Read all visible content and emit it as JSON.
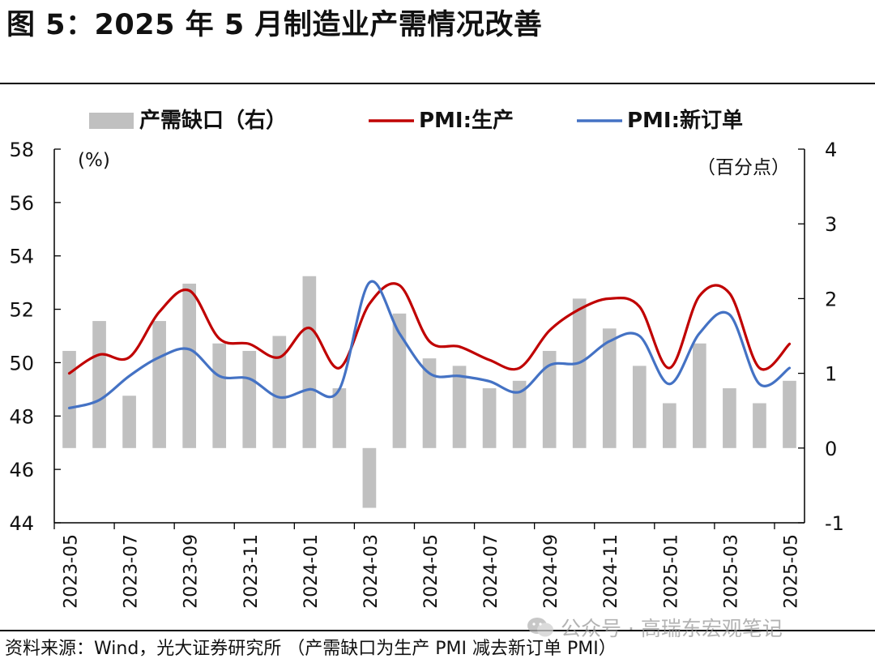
{
  "title": "图 5：2025 年 5 月制造业产需情况改善",
  "source": "资料来源：Wind，光大证券研究所 （产需缺口为生产 PMI 减去新订单 PMI）",
  "watermark": "公众号 · 高瑞东宏观笔记",
  "colors": {
    "bar": "#c0c0c0",
    "production": "#c00000",
    "new_orders": "#4472c4"
  },
  "chart_data": {
    "type": "bar+line",
    "legend_position": "top",
    "left_unit": "(%)",
    "right_unit": "（百分点）",
    "left_axis": {
      "min": 44,
      "max": 58,
      "ticks": [
        44,
        46,
        48,
        50,
        52,
        54,
        56,
        58
      ]
    },
    "right_axis": {
      "min": -1,
      "max": 4,
      "ticks": [
        -1,
        0,
        1,
        2,
        3,
        4
      ]
    },
    "x": [
      "2023-05",
      "2023-06",
      "2023-07",
      "2023-08",
      "2023-09",
      "2023-10",
      "2023-11",
      "2023-12",
      "2024-01",
      "2024-02",
      "2024-03",
      "2024-04",
      "2024-05",
      "2024-06",
      "2024-07",
      "2024-08",
      "2024-09",
      "2024-10",
      "2024-11",
      "2024-12",
      "2025-01",
      "2025-02",
      "2025-03",
      "2025-04",
      "2025-05"
    ],
    "x_tick_labels": [
      "2023-05",
      "2023-07",
      "2023-09",
      "2023-11",
      "2024-01",
      "2024-03",
      "2024-05",
      "2024-07",
      "2024-09",
      "2024-11",
      "2025-01",
      "2025-03",
      "2025-05"
    ],
    "series": [
      {
        "name": "产需缺口（右）",
        "type": "bar",
        "axis": "right",
        "values": [
          1.3,
          1.7,
          0.7,
          1.7,
          2.2,
          1.4,
          1.3,
          1.5,
          2.3,
          0.8,
          -0.8,
          1.8,
          1.2,
          1.1,
          0.8,
          0.9,
          1.3,
          2.0,
          1.6,
          1.1,
          0.6,
          1.4,
          0.8,
          0.6,
          0.9
        ]
      },
      {
        "name": "PMI:生产",
        "type": "line",
        "axis": "left",
        "values": [
          49.6,
          50.3,
          50.2,
          51.9,
          52.7,
          50.9,
          50.7,
          50.2,
          51.3,
          49.8,
          52.2,
          52.9,
          50.8,
          50.6,
          50.1,
          49.8,
          51.2,
          52.0,
          52.4,
          52.1,
          49.8,
          52.5,
          52.6,
          49.8,
          50.7
        ]
      },
      {
        "name": "PMI:新订单",
        "type": "line",
        "axis": "left",
        "values": [
          48.3,
          48.6,
          49.5,
          50.2,
          50.5,
          49.5,
          49.4,
          48.7,
          49.0,
          49.0,
          53.0,
          51.1,
          49.6,
          49.5,
          49.3,
          48.9,
          49.9,
          50.0,
          50.8,
          51.0,
          49.2,
          51.1,
          51.8,
          49.2,
          49.8
        ]
      }
    ]
  }
}
